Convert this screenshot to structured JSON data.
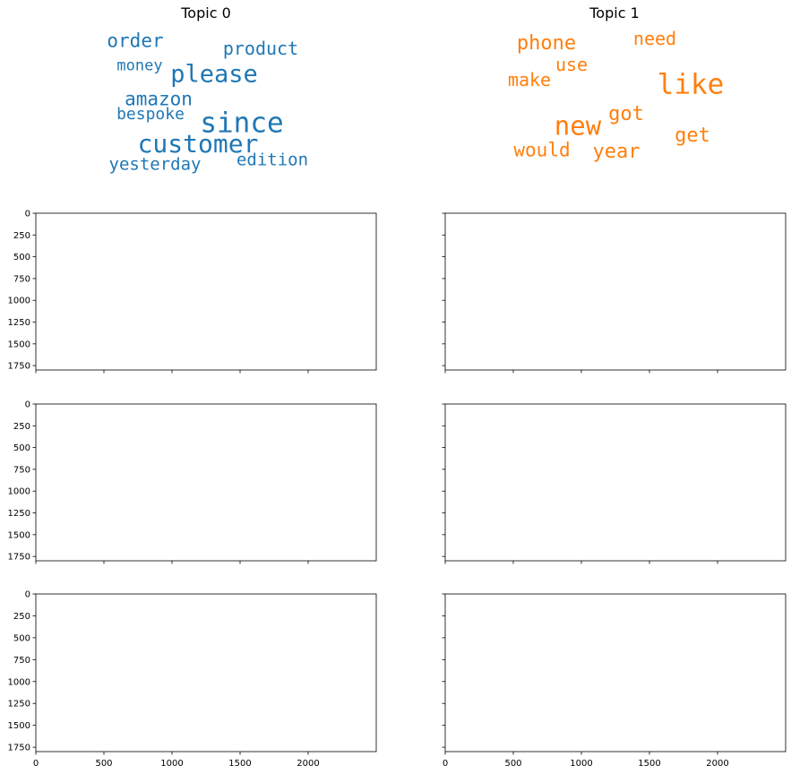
{
  "chart_data": [
    {
      "type": "wordcloud",
      "title": "Topic 0",
      "color": "#1f77b4",
      "words": [
        {
          "text": "order",
          "weight": 0.68
        },
        {
          "text": "product",
          "weight": 0.66
        },
        {
          "text": "money",
          "weight": 0.56
        },
        {
          "text": "please",
          "weight": 0.86
        },
        {
          "text": "amazon",
          "weight": 0.68
        },
        {
          "text": "bespoke",
          "weight": 0.58
        },
        {
          "text": "since",
          "weight": 1.0
        },
        {
          "text": "customer",
          "weight": 0.9
        },
        {
          "text": "edition",
          "weight": 0.62
        },
        {
          "text": "yesterday",
          "weight": 0.62
        }
      ]
    },
    {
      "type": "wordcloud",
      "title": "Topic 1",
      "color": "#ff7f0e",
      "words": [
        {
          "text": "phone",
          "weight": 0.72
        },
        {
          "text": "need",
          "weight": 0.64
        },
        {
          "text": "use",
          "weight": 0.64
        },
        {
          "text": "make",
          "weight": 0.66
        },
        {
          "text": "like",
          "weight": 1.0
        },
        {
          "text": "got",
          "weight": 0.7
        },
        {
          "text": "new",
          "weight": 0.92
        },
        {
          "text": "get",
          "weight": 0.7
        },
        {
          "text": "would",
          "weight": 0.68
        },
        {
          "text": "year",
          "weight": 0.7
        }
      ]
    },
    {
      "type": "empty",
      "panels": 6,
      "y_ticks": [
        "0",
        "250",
        "500",
        "750",
        "1000",
        "1250",
        "1500",
        "1750"
      ],
      "x_ticks": [
        "0",
        "500",
        "1000",
        "1500",
        "2000"
      ],
      "xlim": [
        0,
        2500
      ],
      "ylim": [
        1800,
        0
      ]
    }
  ]
}
